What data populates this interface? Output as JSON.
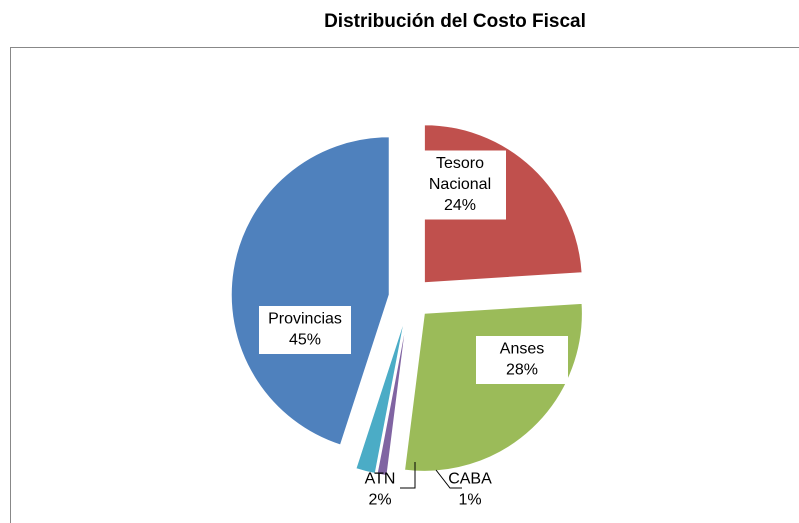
{
  "chart_data": {
    "type": "pie",
    "title": "Distribución del Costo Fiscal",
    "categories": [
      "Tesoro Nacional",
      "Anses",
      "CABA",
      "ATN",
      "Provincias"
    ],
    "values": [
      24,
      28,
      1,
      2,
      45
    ],
    "value_labels": [
      "24%",
      "28%",
      "1%",
      "2%",
      "45%"
    ],
    "colors": [
      "#c0504d",
      "#9bbb59",
      "#8064a2",
      "#4bacc6",
      "#4f81bd"
    ]
  }
}
